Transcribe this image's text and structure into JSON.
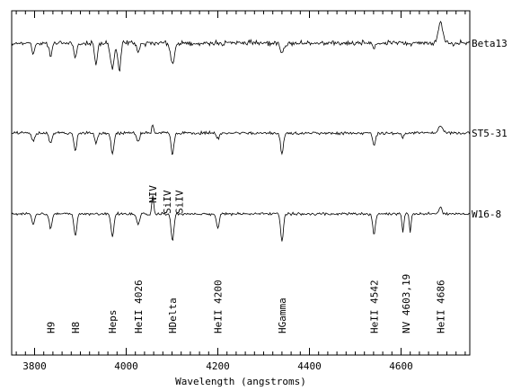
{
  "chart_data": {
    "type": "line",
    "title": "",
    "xlabel": "Wavelength (angstroms)",
    "ylabel": "",
    "xlim": [
      3750,
      4750
    ],
    "xticks": [
      3800,
      4000,
      4200,
      4400,
      4600
    ],
    "xtick_labels": [
      "3800",
      "4000",
      "4200",
      "4400",
      "4600"
    ],
    "grid": false,
    "series": [
      {
        "name": "Beta13",
        "color": "#000000",
        "continuum": 0.9,
        "lines": [
          {
            "wl": 3797,
            "depth": 0.06,
            "width": 3
          },
          {
            "wl": 3835,
            "depth": 0.07,
            "width": 3
          },
          {
            "wl": 3889,
            "depth": 0.08,
            "width": 3
          },
          {
            "wl": 3934,
            "depth": 0.12,
            "width": 3
          },
          {
            "wl": 3970,
            "depth": 0.14,
            "width": 4
          },
          {
            "wl": 3985,
            "depth": 0.16,
            "width": 3
          },
          {
            "wl": 4026,
            "depth": 0.05,
            "width": 3
          },
          {
            "wl": 4101,
            "depth": 0.12,
            "width": 4
          },
          {
            "wl": 4340,
            "depth": 0.06,
            "width": 4
          },
          {
            "wl": 4541,
            "depth": 0.03,
            "width": 3
          }
        ],
        "emission": [
          {
            "wl": 4686,
            "height": 0.12,
            "width": 5
          }
        ]
      },
      {
        "name": "ST5-31",
        "color": "#000000",
        "continuum": 0.5,
        "lines": [
          {
            "wl": 3797,
            "depth": 0.05,
            "width": 3
          },
          {
            "wl": 3835,
            "depth": 0.06,
            "width": 3
          },
          {
            "wl": 3889,
            "depth": 0.1,
            "width": 3
          },
          {
            "wl": 3934,
            "depth": 0.06,
            "width": 3
          },
          {
            "wl": 3970,
            "depth": 0.12,
            "width": 3
          },
          {
            "wl": 4026,
            "depth": 0.05,
            "width": 3
          },
          {
            "wl": 4101,
            "depth": 0.12,
            "width": 3
          },
          {
            "wl": 4200,
            "depth": 0.03,
            "width": 3
          },
          {
            "wl": 4340,
            "depth": 0.12,
            "width": 3
          },
          {
            "wl": 4541,
            "depth": 0.07,
            "width": 3
          },
          {
            "wl": 4604,
            "depth": 0.03,
            "width": 2
          }
        ],
        "emission": [
          {
            "wl": 4058,
            "height": 0.05,
            "width": 2
          },
          {
            "wl": 4686,
            "height": 0.04,
            "width": 5
          }
        ]
      },
      {
        "name": "W16-8",
        "color": "#000000",
        "continuum": 0.0,
        "lines": [
          {
            "wl": 3797,
            "depth": 0.06,
            "width": 3
          },
          {
            "wl": 3835,
            "depth": 0.08,
            "width": 3
          },
          {
            "wl": 3889,
            "depth": 0.12,
            "width": 3
          },
          {
            "wl": 3970,
            "depth": 0.13,
            "width": 3
          },
          {
            "wl": 4026,
            "depth": 0.06,
            "width": 3
          },
          {
            "wl": 4101,
            "depth": 0.15,
            "width": 3
          },
          {
            "wl": 4200,
            "depth": 0.08,
            "width": 3
          },
          {
            "wl": 4340,
            "depth": 0.15,
            "width": 3
          },
          {
            "wl": 4541,
            "depth": 0.11,
            "width": 3
          },
          {
            "wl": 4604,
            "depth": 0.1,
            "width": 2
          },
          {
            "wl": 4620,
            "depth": 0.1,
            "width": 2
          }
        ],
        "emission": [
          {
            "wl": 4058,
            "height": 0.1,
            "width": 2
          },
          {
            "wl": 4686,
            "height": 0.04,
            "width": 3
          }
        ]
      }
    ],
    "annotations": [
      {
        "text": "NIV",
        "wl": 4058
      },
      {
        "text": "SiIV",
        "wl": 4089
      },
      {
        "text": "SiIV",
        "wl": 4116
      }
    ],
    "line_ids": [
      {
        "text": "H9",
        "wl": 3835
      },
      {
        "text": "H8",
        "wl": 3889
      },
      {
        "text": "Heps",
        "wl": 3970
      },
      {
        "text": "HeII 4026",
        "wl": 4026
      },
      {
        "text": "HDelta",
        "wl": 4101
      },
      {
        "text": "HeII 4200",
        "wl": 4200
      },
      {
        "text": "HGamma",
        "wl": 4340
      },
      {
        "text": "HeII 4542",
        "wl": 4541
      },
      {
        "text": "NV 4603,19",
        "wl": 4611
      },
      {
        "text": "HeII 4686",
        "wl": 4686
      }
    ]
  }
}
